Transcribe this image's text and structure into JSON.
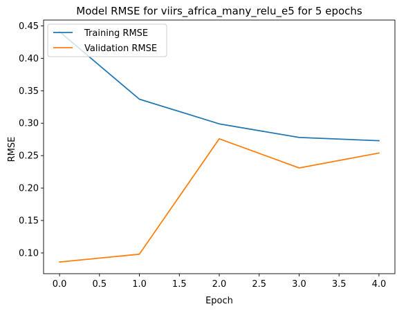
{
  "chart_data": {
    "type": "line",
    "title": "Model RMSE for viirs_africa_many_relu_e5 for 5 epochs",
    "xlabel": "Epoch",
    "ylabel": "RMSE",
    "x": [
      0,
      1,
      2,
      3,
      4
    ],
    "xlim": [
      -0.2,
      4.2
    ],
    "ylim": [
      0.068,
      0.459
    ],
    "xticks": [
      0.0,
      0.5,
      1.0,
      1.5,
      2.0,
      2.5,
      3.0,
      3.5,
      4.0
    ],
    "xtick_labels": [
      "0.0",
      "0.5",
      "1.0",
      "1.5",
      "2.0",
      "2.5",
      "3.0",
      "3.5",
      "4.0"
    ],
    "yticks": [
      0.1,
      0.15,
      0.2,
      0.25,
      0.3,
      0.35,
      0.4,
      0.45
    ],
    "ytick_labels": [
      "0.10",
      "0.15",
      "0.20",
      "0.25",
      "0.30",
      "0.35",
      "0.40",
      "0.45"
    ],
    "grid": false,
    "legend_position": "top-left",
    "series": [
      {
        "name": "Training RMSE",
        "color": "#1f77b4",
        "values": [
          0.441,
          0.337,
          0.299,
          0.278,
          0.273
        ]
      },
      {
        "name": "Validation RMSE",
        "color": "#ff7f0e",
        "values": [
          0.086,
          0.098,
          0.276,
          0.231,
          0.254
        ]
      }
    ]
  }
}
